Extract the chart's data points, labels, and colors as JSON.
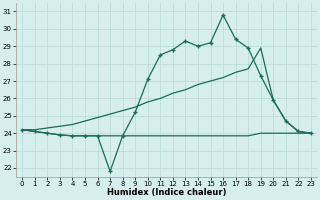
{
  "xlabel": "Humidex (Indice chaleur)",
  "bg_color": "#d6eeee",
  "line_color": "#1a6b5a",
  "grid_color": "#b8d8d8",
  "xlim": [
    -0.5,
    23.5
  ],
  "ylim": [
    21.5,
    31.5
  ],
  "yticks": [
    22,
    23,
    24,
    25,
    26,
    27,
    28,
    29,
    30,
    31
  ],
  "xticks": [
    0,
    1,
    2,
    3,
    4,
    5,
    6,
    7,
    8,
    9,
    10,
    11,
    12,
    13,
    14,
    15,
    16,
    17,
    18,
    19,
    20,
    21,
    22,
    23
  ],
  "line1_x": [
    0,
    1,
    2,
    3,
    4,
    5,
    6,
    7,
    8,
    9,
    10,
    11,
    12,
    13,
    14,
    15,
    16,
    17,
    18,
    19,
    20,
    21,
    22,
    23
  ],
  "line1_y": [
    24.2,
    24.1,
    24.0,
    23.9,
    23.85,
    23.85,
    23.85,
    21.8,
    23.85,
    25.2,
    27.1,
    28.5,
    28.8,
    29.3,
    29.0,
    29.2,
    30.8,
    29.4,
    28.9,
    27.3,
    25.9,
    24.7,
    24.1,
    24.0
  ],
  "line2_x": [
    0,
    1,
    2,
    3,
    4,
    5,
    6,
    7,
    8,
    9,
    10,
    11,
    12,
    13,
    14,
    15,
    16,
    17,
    18,
    19,
    20,
    21,
    22,
    23
  ],
  "line2_y": [
    24.2,
    24.1,
    24.0,
    23.9,
    23.85,
    23.85,
    23.85,
    23.85,
    23.85,
    23.85,
    23.85,
    23.85,
    23.85,
    23.85,
    23.85,
    23.85,
    23.85,
    23.85,
    23.85,
    24.0,
    24.0,
    24.0,
    24.0,
    24.0
  ],
  "line3_x": [
    0,
    1,
    2,
    3,
    4,
    5,
    6,
    7,
    8,
    9,
    10,
    11,
    12,
    13,
    14,
    15,
    16,
    17,
    18,
    19,
    20,
    21,
    22,
    23
  ],
  "line3_y": [
    24.2,
    24.2,
    24.3,
    24.4,
    24.5,
    24.7,
    24.9,
    25.1,
    25.3,
    25.5,
    25.8,
    26.0,
    26.3,
    26.5,
    26.8,
    27.0,
    27.2,
    27.5,
    27.7,
    28.9,
    25.9,
    24.7,
    24.1,
    24.0
  ]
}
